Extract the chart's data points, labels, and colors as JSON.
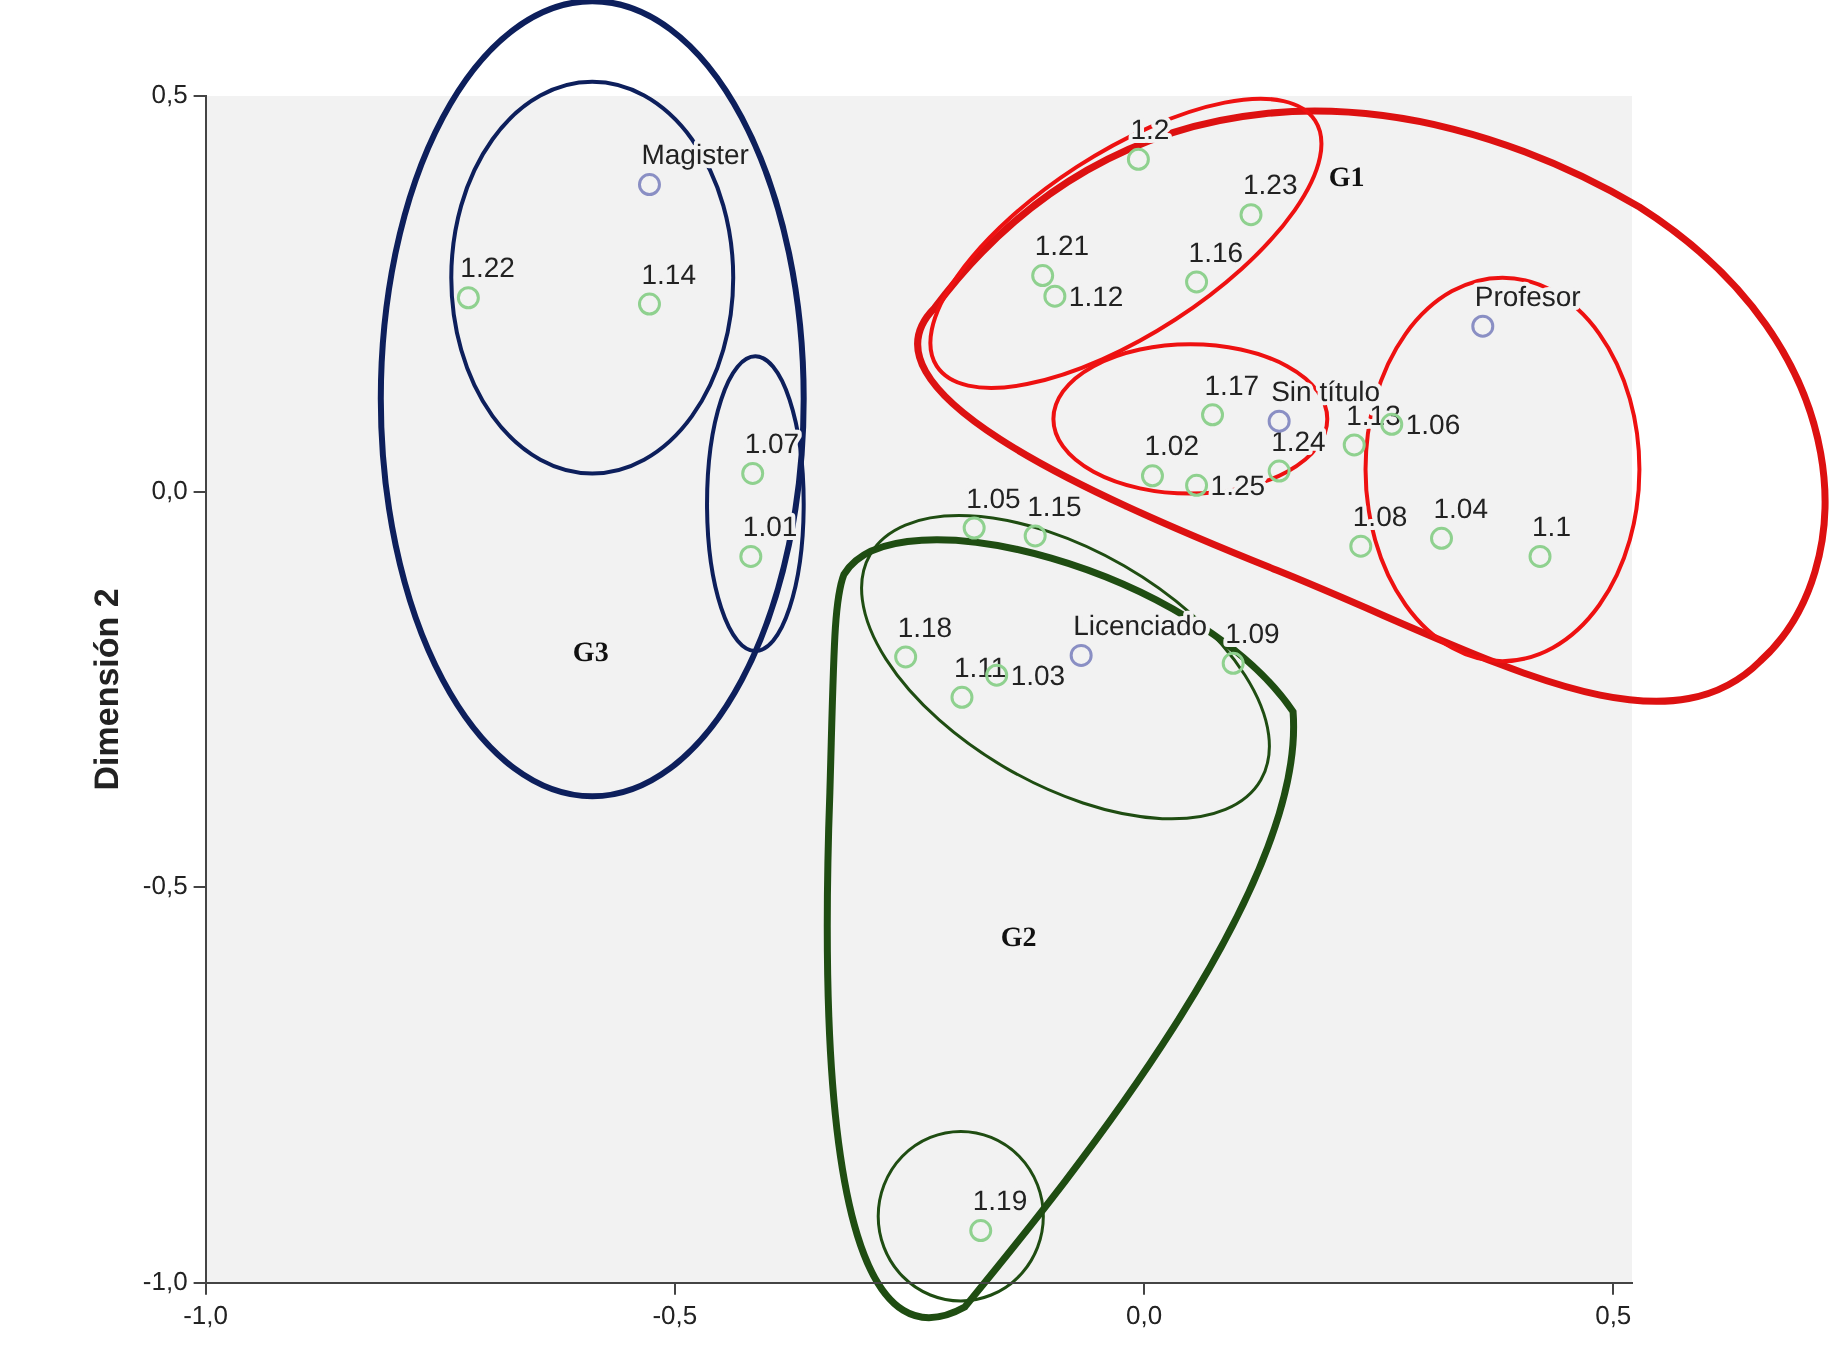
{
  "chart_data": {
    "type": "scatter",
    "ylabel": "Dimensión 2",
    "xlim": [
      -1.0,
      0.52
    ],
    "ylim": [
      -1.0,
      0.5
    ],
    "xticks": [
      {
        "value": -1.0,
        "label": "-1,0"
      },
      {
        "value": -0.5,
        "label": "-0,5"
      },
      {
        "value": 0.0,
        "label": "0,0"
      },
      {
        "value": 0.5,
        "label": "0,5"
      }
    ],
    "yticks": [
      {
        "value": -1.0,
        "label": "-1,0"
      },
      {
        "value": -0.5,
        "label": "-0,5"
      },
      {
        "value": 0.0,
        "label": "0,0"
      },
      {
        "value": 0.5,
        "label": "0,5"
      }
    ],
    "grid": false,
    "legend": false,
    "marker": "circle",
    "series": [
      {
        "color": "#8fd18f",
        "x": [
          -0.006,
          0.114,
          -0.108,
          -0.095,
          0.056,
          0.073,
          0.009,
          0.056,
          0.144,
          0.224,
          0.264,
          0.231,
          0.317,
          0.422,
          -0.72,
          -0.527,
          -0.417,
          -0.419,
          -0.181,
          -0.116,
          -0.254,
          0.095,
          -0.194,
          -0.157,
          -0.174
        ],
        "values": [
          0.42,
          0.35,
          0.273,
          0.247,
          0.265,
          0.097,
          0.02,
          0.008,
          0.026,
          0.059,
          0.085,
          -0.069,
          -0.059,
          -0.082,
          0.245,
          0.237,
          0.023,
          -0.082,
          -0.046,
          -0.056,
          -0.209,
          -0.217,
          -0.26,
          -0.232,
          -0.934
        ]
      },
      {
        "color": "#8a8fc4",
        "x": [
          0.144,
          0.361,
          -0.527,
          -0.067
        ],
        "values": [
          0.089,
          0.209,
          0.388,
          -0.207
        ]
      }
    ],
    "annotations": [
      {
        "text": "1.2",
        "x": -0.006,
        "y": 0.42
      },
      {
        "text": "1.23",
        "x": 0.114,
        "y": 0.35
      },
      {
        "text": "1.21",
        "x": -0.108,
        "y": 0.273
      },
      {
        "text": "1.12",
        "x": -0.095,
        "y": 0.247
      },
      {
        "text": "1.16",
        "x": 0.056,
        "y": 0.265
      },
      {
        "text": "1.17",
        "x": 0.073,
        "y": 0.097
      },
      {
        "text": "1.02",
        "x": 0.009,
        "y": 0.02
      },
      {
        "text": "1.25",
        "x": 0.056,
        "y": 0.008
      },
      {
        "text": "1.24",
        "x": 0.144,
        "y": 0.026
      },
      {
        "text": "1.13",
        "x": 0.224,
        "y": 0.059
      },
      {
        "text": "1.06",
        "x": 0.264,
        "y": 0.085
      },
      {
        "text": "1.08",
        "x": 0.231,
        "y": -0.069
      },
      {
        "text": "1.04",
        "x": 0.317,
        "y": -0.059
      },
      {
        "text": "1.1",
        "x": 0.422,
        "y": -0.082
      },
      {
        "text": "1.22",
        "x": -0.72,
        "y": 0.245
      },
      {
        "text": "1.14",
        "x": -0.527,
        "y": 0.237
      },
      {
        "text": "1.07",
        "x": -0.417,
        "y": 0.023
      },
      {
        "text": "1.01",
        "x": -0.419,
        "y": -0.082
      },
      {
        "text": "1.05",
        "x": -0.181,
        "y": -0.046
      },
      {
        "text": "1.15",
        "x": -0.116,
        "y": -0.056
      },
      {
        "text": "1.18",
        "x": -0.254,
        "y": -0.209
      },
      {
        "text": "1.09",
        "x": 0.095,
        "y": -0.217
      },
      {
        "text": "1.11",
        "x": -0.194,
        "y": -0.26
      },
      {
        "text": "1.03",
        "x": -0.157,
        "y": -0.232
      },
      {
        "text": "1.19",
        "x": -0.174,
        "y": -0.934
      },
      {
        "text": "Sin título",
        "x": 0.144,
        "y": 0.089
      },
      {
        "text": "Profesor",
        "x": 0.361,
        "y": 0.209
      },
      {
        "text": "Magister",
        "x": -0.527,
        "y": 0.388
      },
      {
        "text": "Licenciado",
        "x": -0.067,
        "y": -0.207
      },
      "G1",
      "G2",
      "G3"
    ]
  }
}
